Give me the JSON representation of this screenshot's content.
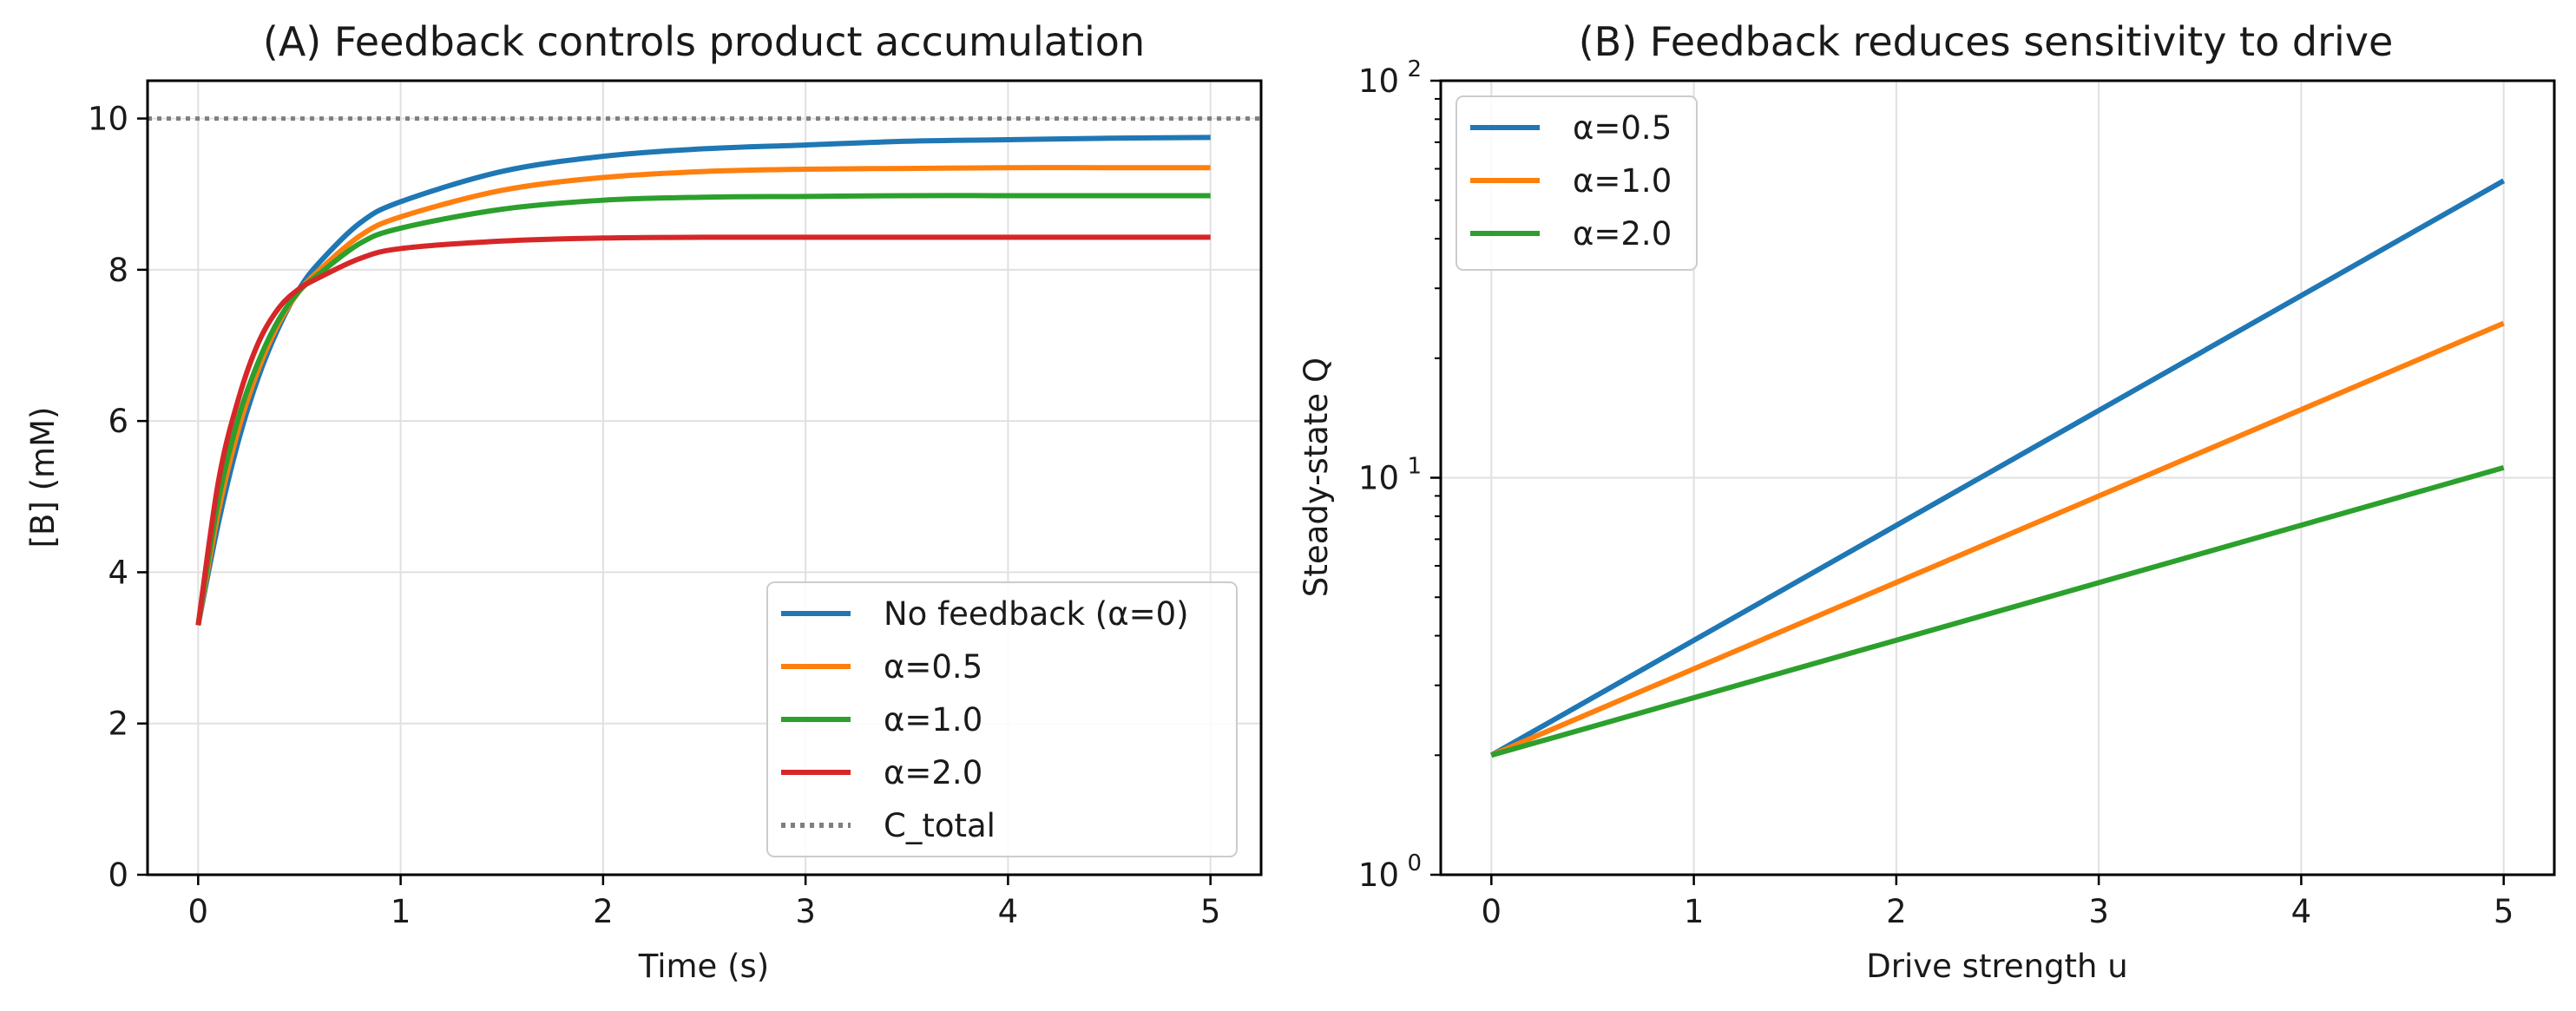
{
  "chart_data": [
    {
      "type": "line",
      "title": "(A) Feedback controls product accumulation",
      "xlabel": "Time (s)",
      "ylabel": "[B] (mM)",
      "xlim": [
        -0.25,
        5.25
      ],
      "ylim": [
        0,
        10.5
      ],
      "xticks": [
        0,
        1,
        2,
        3,
        4,
        5
      ],
      "yticks": [
        0,
        2,
        4,
        6,
        8,
        10
      ],
      "grid": true,
      "legend_position": "lower-right",
      "reference_line": {
        "name": "C_total",
        "y": 10,
        "color": "#7f7f7f",
        "style": "dotted"
      },
      "x": [
        0,
        0.1,
        0.2,
        0.3,
        0.4,
        0.5,
        0.6,
        0.8,
        1.0,
        1.5,
        2.0,
        2.5,
        3.0,
        3.5,
        4.0,
        4.5,
        5.0
      ],
      "series": [
        {
          "name": "No feedback (α=0)",
          "color": "#1f77b4",
          "values": [
            3.3,
            4.65,
            5.75,
            6.6,
            7.25,
            7.75,
            8.1,
            8.62,
            8.9,
            9.3,
            9.5,
            9.6,
            9.65,
            9.7,
            9.72,
            9.74,
            9.75
          ]
        },
        {
          "name": "α=0.5",
          "color": "#ff7f0e",
          "values": [
            3.3,
            4.8,
            5.9,
            6.7,
            7.3,
            7.72,
            8.0,
            8.45,
            8.7,
            9.05,
            9.22,
            9.3,
            9.33,
            9.34,
            9.35,
            9.35,
            9.35
          ]
        },
        {
          "name": "α=1.0",
          "color": "#2ca02c",
          "values": [
            3.3,
            4.95,
            6.05,
            6.8,
            7.35,
            7.72,
            7.95,
            8.35,
            8.55,
            8.8,
            8.92,
            8.96,
            8.97,
            8.98,
            8.98,
            8.98,
            8.98
          ]
        },
        {
          "name": "α=2.0",
          "color": "#d62728",
          "values": [
            3.3,
            5.2,
            6.3,
            7.05,
            7.5,
            7.75,
            7.9,
            8.15,
            8.28,
            8.38,
            8.42,
            8.43,
            8.43,
            8.43,
            8.43,
            8.43,
            8.43
          ]
        }
      ],
      "legend_entries": [
        "No feedback (α=0)",
        "α=0.5",
        "α=1.0",
        "α=2.0",
        "C_total"
      ]
    },
    {
      "type": "line",
      "title": "(B) Feedback reduces sensitivity to drive",
      "xlabel": "Drive strength u",
      "ylabel": "Steady-state Q",
      "xlim": [
        -0.25,
        5.25
      ],
      "ylim": [
        1,
        100
      ],
      "yscale": "log",
      "xticks": [
        0,
        1,
        2,
        3,
        4,
        5
      ],
      "yticks": [
        {
          "value": 1,
          "base": "10",
          "exp": "0"
        },
        {
          "value": 10,
          "base": "10",
          "exp": "1"
        },
        {
          "value": 100,
          "base": "10",
          "exp": "2"
        }
      ],
      "grid": true,
      "legend_position": "upper-left",
      "x": [
        0,
        5
      ],
      "series": [
        {
          "name": "α=0.5",
          "color": "#1f77b4",
          "values": [
            2.0,
            56
          ]
        },
        {
          "name": "α=1.0",
          "color": "#ff7f0e",
          "values": [
            2.0,
            24.5
          ]
        },
        {
          "name": "α=2.0",
          "color": "#2ca02c",
          "values": [
            2.0,
            10.6
          ]
        }
      ],
      "legend_entries": [
        "α=0.5",
        "α=1.0",
        "α=2.0"
      ]
    }
  ]
}
